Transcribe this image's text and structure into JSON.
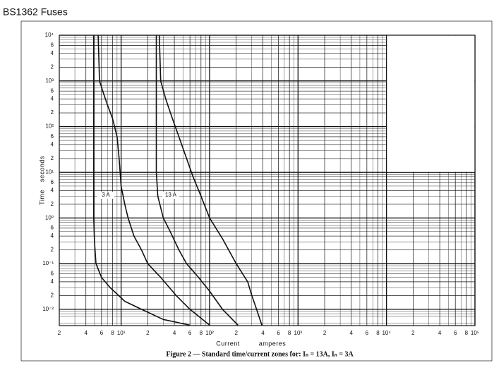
{
  "chart_data": {
    "type": "line",
    "title": "BS1362 Fuses",
    "caption": "Figure 2 — Standard time/current zones for: Iₙ = 13A, Iₙ = 3A",
    "ylabel": "Time seconds",
    "xlabel": "Current",
    "xlabel_unit": "amperes",
    "xscale": "log",
    "yscale": "log",
    "grid": true,
    "xlim": [
      2,
      100000
    ],
    "ylim": [
      0.0044,
      10000
    ],
    "xticks": [
      2,
      4,
      6,
      8,
      {
        "value": 10,
        "label": "10¹"
      },
      {
        "value": 20,
        "label": "2"
      },
      {
        "value": 40,
        "label": "4"
      },
      {
        "value": 60,
        "label": "6"
      },
      {
        "value": 80,
        "label": "8"
      },
      {
        "value": 100,
        "label": "10²"
      },
      {
        "value": 200,
        "label": "2"
      },
      {
        "value": 400,
        "label": "4"
      },
      {
        "value": 600,
        "label": "6"
      },
      {
        "value": 800,
        "label": "8"
      },
      {
        "value": 1000,
        "label": "10³"
      },
      {
        "value": 2000,
        "label": "2"
      },
      {
        "value": 4000,
        "label": "4"
      },
      {
        "value": 6000,
        "label": "6"
      },
      {
        "value": 8000,
        "label": "8"
      },
      {
        "value": 10000,
        "label": "10⁴"
      },
      {
        "value": 20000,
        "label": "2"
      },
      {
        "value": 40000,
        "label": "4"
      },
      {
        "value": 60000,
        "label": "6"
      },
      {
        "value": 80000,
        "label": "8"
      },
      {
        "value": 100000,
        "label": "10⁵"
      }
    ],
    "yticks": [
      {
        "value": 10000,
        "label": "10⁴"
      },
      {
        "value": 6000,
        "label": "6"
      },
      {
        "value": 4000,
        "label": "4"
      },
      {
        "value": 2000,
        "label": "2"
      },
      {
        "value": 1000,
        "label": "10³"
      },
      {
        "value": 600,
        "label": "6"
      },
      {
        "value": 400,
        "label": "4"
      },
      {
        "value": 200,
        "label": "2"
      },
      {
        "value": 100,
        "label": "10²"
      },
      {
        "value": 60,
        "label": "6"
      },
      {
        "value": 40,
        "label": "4"
      },
      {
        "value": 20,
        "label": "2"
      },
      {
        "value": 10,
        "label": "10¹"
      },
      6,
      4,
      2,
      {
        "value": 1,
        "label": "10⁰"
      },
      {
        "value": 0.6,
        "label": "6"
      },
      {
        "value": 0.4,
        "label": "4"
      },
      {
        "value": 0.2,
        "label": "2"
      },
      {
        "value": 0.1,
        "label": "10⁻¹"
      },
      {
        "value": 0.06,
        "label": "6"
      },
      {
        "value": 0.04,
        "label": "4"
      },
      {
        "value": 0.02,
        "label": "2"
      },
      {
        "value": 0.01,
        "label": "10⁻²"
      }
    ],
    "annotations": [
      "3 A",
      "13 A"
    ],
    "series": [
      {
        "color": "#111111",
        "x": [
          4.9,
          4.9,
          4.9,
          4.9,
          5.0,
          5.2,
          6,
          7.5,
          11,
          17,
          30,
          60
        ],
        "values": [
          10000,
          1000,
          10,
          1,
          0.3,
          0.1,
          0.05,
          0.03,
          0.015,
          0.01,
          0.006,
          0.0045
        ]
      },
      {
        "color": "#111111",
        "x": [
          5.5,
          5.7,
          6.2,
          7.0,
          8.0,
          9.0,
          9.5,
          10,
          11,
          12,
          14,
          17,
          20,
          28,
          42,
          60,
          100
        ],
        "values": [
          10000,
          1000,
          600,
          300,
          150,
          60,
          20,
          5,
          2,
          1,
          0.4,
          0.2,
          0.1,
          0.05,
          0.02,
          0.01,
          0.0045
        ]
      },
      {
        "color": "#111111",
        "x": [
          25,
          25,
          25,
          26,
          30,
          36,
          45,
          55,
          75,
          100,
          140,
          210
        ],
        "values": [
          10000,
          1000,
          10,
          3,
          1,
          0.5,
          0.2,
          0.1,
          0.05,
          0.025,
          0.01,
          0.0045
        ]
      },
      {
        "color": "#111111",
        "x": [
          27,
          28,
          32,
          38,
          45,
          55,
          65,
          80,
          100,
          140,
          200,
          270,
          300,
          340,
          390
        ],
        "values": [
          10000,
          1000,
          400,
          150,
          60,
          20,
          8,
          3,
          1,
          0.35,
          0.1,
          0.04,
          0.02,
          0.01,
          0.0045
        ]
      }
    ]
  }
}
